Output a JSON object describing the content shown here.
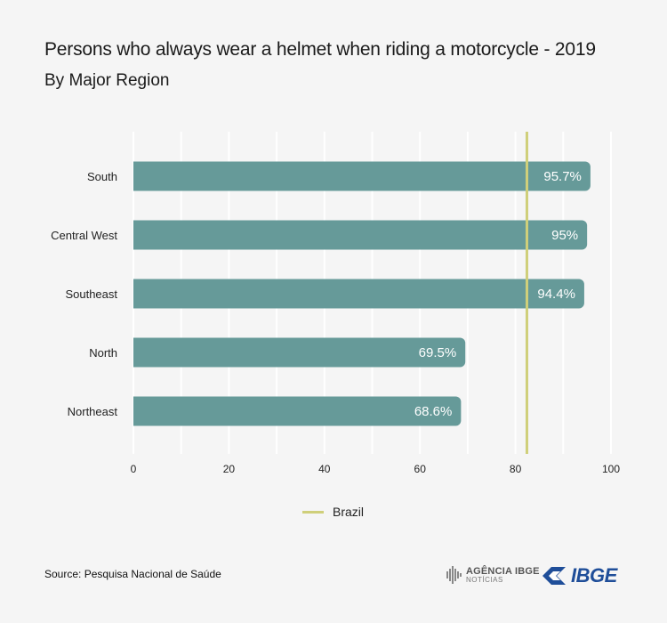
{
  "header": {
    "title": "Persons who always wear a helmet when riding a motorcycle - 2019",
    "subtitle": "By Major Region"
  },
  "chart_data": {
    "type": "bar",
    "orientation": "horizontal",
    "categories": [
      "South",
      "Central West",
      "Southeast",
      "North",
      "Northeast"
    ],
    "values": [
      95.7,
      95,
      94.4,
      69.5,
      68.6
    ],
    "value_labels": [
      "95.7%",
      "95%",
      "94.4%",
      "69.5%",
      "68.6%"
    ],
    "xlim": [
      0,
      100
    ],
    "xticks": [
      0,
      20,
      40,
      60,
      80,
      100
    ],
    "grid": true,
    "reference_line": {
      "name": "Brazil",
      "value": 82.4,
      "color": "#cfcf7a"
    },
    "bar_color": "#669a99",
    "legend_position": "bottom-center"
  },
  "legend": {
    "label": "Brazil"
  },
  "footer": {
    "source": "Source: Pesquisa Nacional de Saúde",
    "agencia_logo_text": "AGÊNCIA IBGE",
    "agencia_logo_sub": "NOTÍCIAS",
    "ibge_logo_text": "IBGE"
  },
  "colors": {
    "background": "#f5f5f5",
    "bar": "#669a99",
    "reference_line": "#cfcf7a",
    "brand_blue": "#1f4e99"
  }
}
